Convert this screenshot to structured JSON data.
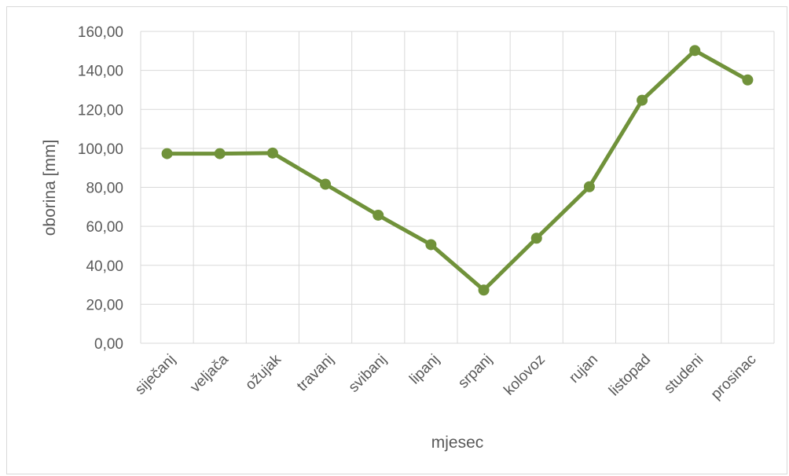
{
  "chart_data": {
    "type": "line",
    "categories": [
      "siječanj",
      "veljača",
      "ožujak",
      "travanj",
      "svibanj",
      "lipanj",
      "srpanj",
      "kolovoz",
      "rujan",
      "listopad",
      "studeni",
      "prosinac"
    ],
    "values": [
      97.3,
      97.3,
      97.6,
      81.6,
      65.7,
      50.6,
      27.3,
      53.9,
      80.3,
      124.7,
      150.2,
      135.1
    ],
    "xlabel": "mjesec",
    "ylabel": "oborina [mm]",
    "ylim": [
      0,
      160
    ],
    "yticks": [
      "0,00",
      "20,00",
      "40,00",
      "60,00",
      "80,00",
      "100,00",
      "120,00",
      "140,00",
      "160,00"
    ],
    "grid": true,
    "legend": "none",
    "series_color": "#70923a"
  }
}
